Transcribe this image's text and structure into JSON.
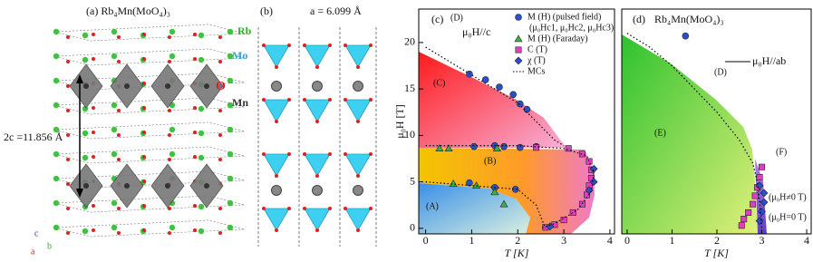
{
  "structures": {
    "a": {
      "title": "(a) Rb₄Mn(MoO₄)₃",
      "labels": [
        "Rb",
        "Mo",
        "O",
        "Mn"
      ],
      "dimension": "2c =11.856 Å",
      "axes": [
        "c",
        "b",
        "a"
      ]
    },
    "b": {
      "title": "(b)",
      "dimension": "a = 6.099 Å"
    }
  },
  "chart_data": [
    {
      "type": "scatter",
      "xlabel": "T [K]",
      "ylabel": "μ₀H [T]",
      "xlim": [
        -0.15,
        4.1
      ],
      "ylim": [
        -0.6,
        23.6
      ],
      "xticks": [
        0,
        1,
        2,
        3,
        4
      ],
      "yticks": [
        0,
        5,
        10,
        15,
        20
      ],
      "annotations": [
        "(c)",
        "(D)",
        "μ₀H//c",
        "(C)",
        "(B)",
        "(A)",
        "(μ₀Hc1, μ₀Hc2, μ₀Hc3)"
      ],
      "series": [
        {
          "name": "M (H) (pulsed field)",
          "color": "#2a4fc9",
          "marker": "circle",
          "x": [
            0.95,
            1.3,
            1.6,
            1.9,
            2.05,
            2.2,
            1.05,
            1.5,
            1.7,
            2.05,
            2.4,
            0.95,
            1.5,
            1.95
          ],
          "values": [
            16.6,
            16.0,
            15.2,
            14.4,
            13.4,
            12.8,
            8.8,
            8.9,
            8.8,
            8.7,
            8.8,
            4.9,
            4.4,
            4.2
          ]
        },
        {
          "name": "M (H) (Faraday)",
          "color": "#3cb043",
          "marker": "triangle",
          "x": [
            0.3,
            0.5,
            1.55,
            0.6,
            1.1,
            1.5,
            1.7
          ],
          "values": [
            8.6,
            8.6,
            8.6,
            4.8,
            4.6,
            3.9,
            2.6
          ]
        },
        {
          "name": "C (T)",
          "color": "#e040c0",
          "marker": "square",
          "x": [
            2.4,
            3.1,
            3.4,
            3.55,
            3.6,
            3.6,
            3.55,
            3.5,
            3.4,
            3.2,
            3.0,
            2.8,
            2.6
          ],
          "values": [
            8.7,
            8.6,
            8.0,
            7.2,
            6.3,
            5.4,
            4.6,
            3.6,
            2.6,
            1.7,
            0.9,
            0.4,
            0.1
          ]
        },
        {
          "name": "χ (T)",
          "color": "#2a4fc9",
          "marker": "diamond",
          "x": [
            3.65,
            3.65,
            3.55,
            2.7
          ],
          "values": [
            6.4,
            5.0,
            4.1,
            0.2
          ]
        },
        {
          "name": "MCs",
          "color": "#000000",
          "marker": "dotted-line",
          "x": [
            0,
            0.5,
            1,
            1.5,
            2,
            2.4,
            2.8,
            3.0,
            null,
            0,
            1,
            2,
            3,
            3.5,
            3.65,
            3.6,
            3.3,
            2.8,
            2.5,
            null,
            0,
            1,
            2,
            2.4,
            2.6
          ],
          "values": [
            19.5,
            18,
            16.5,
            15,
            13.5,
            11.5,
            9.5,
            8.9,
            null,
            8.9,
            8.9,
            8.9,
            8.6,
            7.8,
            6,
            4,
            2,
            0.5,
            0,
            null,
            5,
            4.6,
            4.2,
            2.5,
            0
          ]
        }
      ]
    },
    {
      "type": "scatter",
      "xlabel": "T [K]",
      "xlim": [
        -0.12,
        4.1
      ],
      "ylim": [
        -0.6,
        23.6
      ],
      "xticks": [
        0,
        1,
        2,
        3,
        4
      ],
      "annotations": [
        "(d)",
        "Rb₄Mn(MoO₄)₃",
        "(D)",
        "μ₀H//ab",
        "(E)",
        "(F)",
        "(μ₀H≠0 T)",
        "(μ₀H=0 T)"
      ],
      "series": [
        {
          "color": "#2a4fc9",
          "marker": "circle",
          "x": [
            1.3
          ],
          "values": [
            20.7
          ]
        },
        {
          "color": "#e040c0",
          "marker": "square",
          "x": [
            2.55,
            2.6,
            2.7,
            2.8,
            2.85,
            2.9,
            2.95,
            3.0
          ],
          "values": [
            0.3,
            1.0,
            1.7,
            2.6,
            3.5,
            4.4,
            5.5,
            6.6
          ]
        },
        {
          "color": "#2a4fc9",
          "marker": "diamond",
          "x": [
            2.95,
            3.0,
            3.05,
            3.05,
            2.95
          ],
          "values": [
            0.8,
            1.8,
            2.8,
            3.8,
            4.6
          ]
        },
        {
          "color": "#000000",
          "marker": "dotted-line",
          "x": [
            0,
            0.5,
            1,
            1.5,
            2,
            2.5,
            2.8,
            2.9,
            2.95,
            3.0
          ],
          "values": [
            21,
            19.5,
            17.5,
            15,
            12.5,
            9.5,
            7,
            5,
            3,
            0
          ]
        }
      ]
    }
  ]
}
